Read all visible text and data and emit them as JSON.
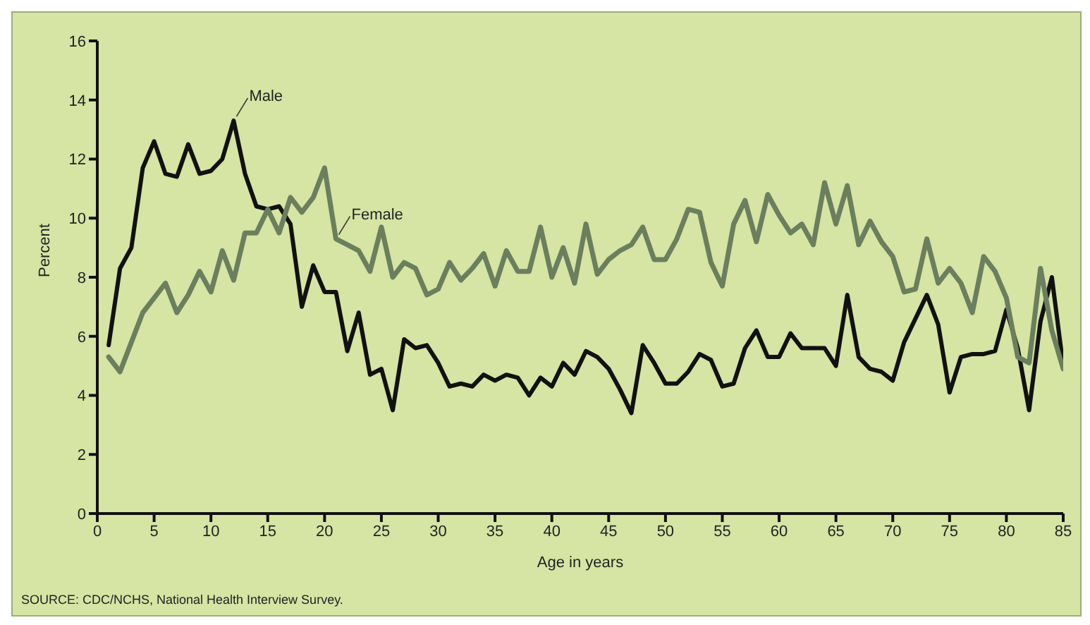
{
  "chart_data": {
    "type": "line",
    "xlabel": "Age in years",
    "ylabel": "Percent",
    "x": [
      1,
      2,
      3,
      4,
      5,
      6,
      7,
      8,
      9,
      10,
      11,
      12,
      13,
      14,
      15,
      16,
      17,
      18,
      19,
      20,
      21,
      22,
      23,
      24,
      25,
      26,
      27,
      28,
      29,
      30,
      31,
      32,
      33,
      34,
      35,
      36,
      37,
      38,
      39,
      40,
      41,
      42,
      43,
      44,
      45,
      46,
      47,
      48,
      49,
      50,
      51,
      52,
      53,
      54,
      55,
      56,
      57,
      58,
      59,
      60,
      61,
      62,
      63,
      64,
      65,
      66,
      67,
      68,
      69,
      70,
      71,
      72,
      73,
      74,
      75,
      76,
      77,
      78,
      79,
      80,
      81,
      82,
      83,
      84,
      85
    ],
    "series": [
      {
        "name": "Male",
        "color": "#111111",
        "values": [
          5.7,
          8.3,
          9.0,
          11.7,
          12.6,
          11.5,
          11.4,
          12.5,
          11.5,
          11.6,
          12.0,
          13.3,
          11.5,
          10.4,
          10.3,
          10.4,
          9.8,
          7.0,
          8.4,
          7.5,
          7.5,
          5.5,
          6.8,
          4.7,
          4.9,
          3.5,
          5.9,
          5.6,
          5.7,
          5.1,
          4.3,
          4.4,
          4.3,
          4.7,
          4.5,
          4.7,
          4.6,
          4.0,
          4.6,
          4.3,
          5.1,
          4.7,
          5.5,
          5.3,
          4.9,
          4.2,
          3.4,
          5.7,
          5.1,
          4.4,
          4.4,
          4.8,
          5.4,
          5.2,
          4.3,
          4.4,
          5.6,
          6.2,
          5.3,
          5.3,
          6.1,
          5.6,
          5.6,
          5.6,
          5.0,
          7.4,
          5.3,
          4.9,
          4.8,
          4.5,
          5.8,
          6.6,
          7.4,
          6.4,
          4.1,
          5.3,
          5.4,
          5.4,
          5.5,
          6.9,
          5.6,
          3.5,
          6.5,
          8.0,
          5.0
        ]
      },
      {
        "name": "Female",
        "color": "#6b7f5e",
        "values": [
          5.3,
          4.8,
          5.8,
          6.8,
          7.3,
          7.8,
          6.8,
          7.4,
          8.2,
          7.5,
          8.9,
          7.9,
          9.5,
          9.5,
          10.3,
          9.5,
          10.7,
          10.2,
          10.7,
          11.7,
          9.3,
          9.1,
          8.9,
          8.2,
          9.7,
          8.0,
          8.5,
          8.3,
          7.4,
          7.6,
          8.5,
          7.9,
          8.3,
          8.8,
          7.7,
          8.9,
          8.2,
          8.2,
          9.7,
          8.0,
          9.0,
          7.8,
          9.8,
          8.1,
          8.6,
          8.9,
          9.1,
          9.7,
          8.6,
          8.6,
          9.3,
          10.3,
          10.2,
          8.5,
          7.7,
          9.8,
          10.6,
          9.2,
          10.8,
          10.1,
          9.5,
          9.8,
          9.1,
          11.2,
          9.8,
          11.1,
          9.1,
          9.9,
          9.2,
          8.7,
          7.5,
          7.6,
          9.3,
          7.8,
          8.3,
          7.8,
          6.8,
          8.7,
          8.2,
          7.3,
          5.3,
          5.1,
          8.3,
          6.2,
          4.9
        ]
      }
    ],
    "xlim": [
      0,
      85
    ],
    "xticks": [
      0,
      5,
      10,
      15,
      20,
      25,
      30,
      35,
      40,
      45,
      50,
      55,
      60,
      65,
      70,
      75,
      80,
      85
    ],
    "ylim": [
      0,
      16
    ],
    "yticks": [
      0,
      2,
      4,
      6,
      8,
      10,
      12,
      14,
      16
    ],
    "grid": false,
    "legend": false,
    "marker": "none",
    "line_style": "solid",
    "annotations": [
      "SOURCE: CDC/NCHS, National Health Interview Survey."
    ]
  }
}
